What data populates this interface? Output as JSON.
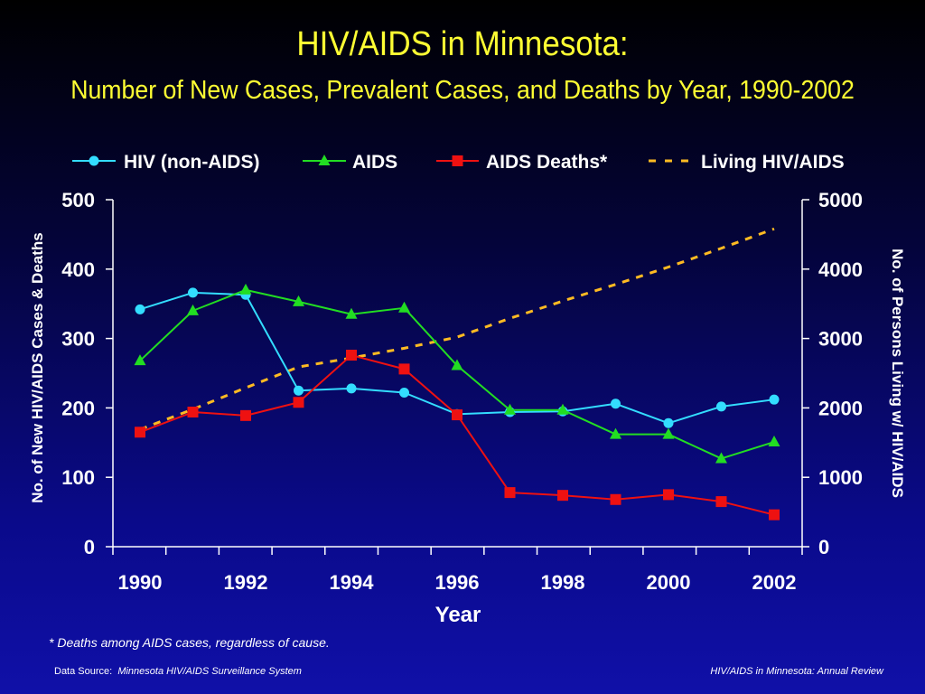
{
  "slide": {
    "title": "HIV/AIDS in Minnesota:",
    "subtitle": "Number of New Cases, Prevalent Cases, and Deaths by Year, 1990-2002",
    "footnote": "*  Deaths among AIDS cases, regardless of cause.",
    "source_label": "Data Source:",
    "source_value": "Minnesota HIV/AIDS Surveillance System",
    "review": "HIV/AIDS in Minnesota: Annual Review"
  },
  "chart_data": {
    "type": "line",
    "x": [
      1990,
      1991,
      1992,
      1993,
      1994,
      1995,
      1996,
      1997,
      1998,
      1999,
      2000,
      2001,
      2002
    ],
    "xticks": [
      "1990",
      "1992",
      "1994",
      "1996",
      "1998",
      "2000",
      "2002"
    ],
    "xlabel": "Year",
    "ylabel": "No. of New HIV/AIDS Cases & Deaths",
    "y2label": "No. of Persons Living w/ HIV/AIDS",
    "ylim": [
      0,
      500
    ],
    "y2lim": [
      0,
      5000
    ],
    "yticks": [
      "0",
      "100",
      "200",
      "300",
      "400",
      "500"
    ],
    "y2ticks": [
      "0",
      "1000",
      "2000",
      "3000",
      "4000",
      "5000"
    ],
    "legend_position": "top",
    "grid": false,
    "series": [
      {
        "name": "HIV (non-AIDS)",
        "axis": "left",
        "marker": "circle",
        "color": "#33ddff",
        "values": [
          342,
          366,
          363,
          225,
          228,
          222,
          191,
          194,
          195,
          206,
          178,
          202,
          212
        ]
      },
      {
        "name": "AIDS",
        "axis": "left",
        "marker": "triangle",
        "color": "#22dd22",
        "values": [
          268,
          340,
          370,
          353,
          335,
          344,
          261,
          197,
          197,
          162,
          162,
          127,
          151
        ]
      },
      {
        "name": "AIDS Deaths*",
        "axis": "left",
        "marker": "square",
        "color": "#ee1111",
        "values": [
          165,
          194,
          189,
          208,
          276,
          256,
          190,
          78,
          74,
          68,
          75,
          65,
          46
        ]
      },
      {
        "name": "Living HIV/AIDS",
        "axis": "right",
        "marker": "none",
        "dashed": true,
        "color": "#ffbb22",
        "values": [
          1690,
          1980,
          2290,
          2590,
          2720,
          2860,
          3020,
          3290,
          3540,
          3780,
          4030,
          4300,
          4580
        ]
      }
    ]
  }
}
